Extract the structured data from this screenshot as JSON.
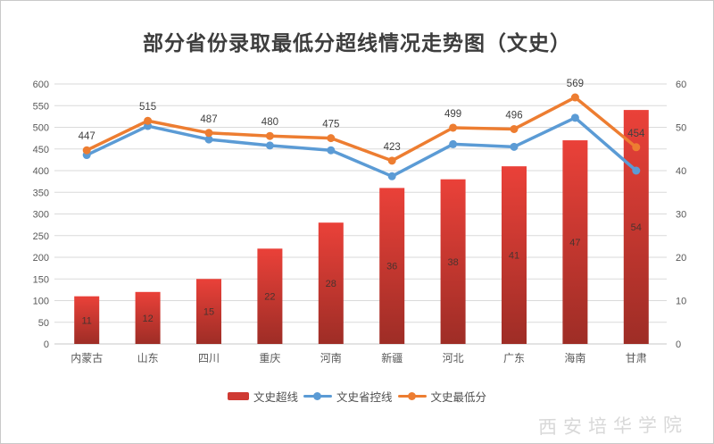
{
  "title": "部分省份录取最低分超线情况走势图（文史）",
  "watermark": "西安培华学院",
  "colors": {
    "bar_top": "#ea4139",
    "bar_bottom": "#9e2d26",
    "bar_legend": "#cf3a33",
    "line_blue": "#5b9bd5",
    "line_orange": "#ed7d31",
    "grid": "#dadada",
    "axis_line": "#c7c7c7",
    "axis_text": "#595959",
    "data_label": "#404040"
  },
  "legend": {
    "items": [
      {
        "label": "文史超线",
        "marker": "bar"
      },
      {
        "label": "文史省控线",
        "marker": "line-blue"
      },
      {
        "label": "文史最低分",
        "marker": "line-orange"
      }
    ]
  },
  "chart_data": {
    "type": "bar",
    "subtype": "combo-bar-line",
    "title": "部分省份录取最低分超线情况走势图（文史）",
    "categories": [
      "内蒙古",
      "山东",
      "四川",
      "重庆",
      "河南",
      "新疆",
      "河北",
      "广东",
      "海南",
      "甘肃"
    ],
    "series": [
      {
        "name": "文史超线",
        "type": "bar",
        "axis": "right",
        "data_labels": true,
        "values": [
          11,
          12,
          15,
          22,
          28,
          36,
          38,
          41,
          47,
          54
        ]
      },
      {
        "name": "文史省控线",
        "type": "line",
        "axis": "left",
        "data_labels": false,
        "values": [
          436,
          503,
          472,
          458,
          447,
          387,
          461,
          455,
          522,
          400
        ]
      },
      {
        "name": "文史最低分",
        "type": "line",
        "axis": "left",
        "data_labels": true,
        "values": [
          447,
          515,
          487,
          480,
          475,
          423,
          499,
          496,
          569,
          454
        ]
      }
    ],
    "left_axis": {
      "min": 0,
      "max": 600,
      "step": 50
    },
    "right_axis": {
      "min": 0,
      "max": 60,
      "step": 10
    },
    "grid": true,
    "legend_position": "bottom"
  }
}
